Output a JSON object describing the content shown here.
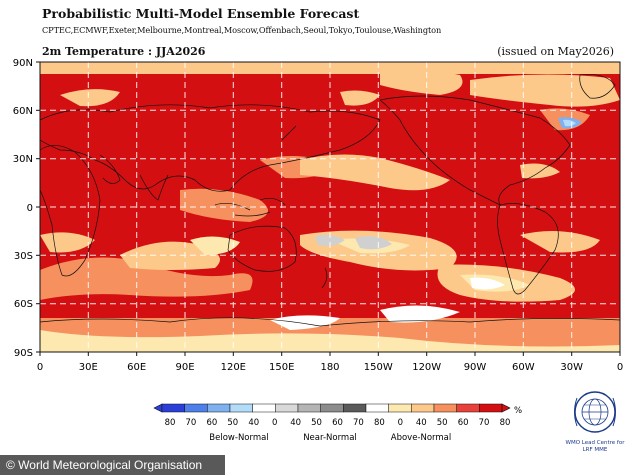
{
  "title": "Probabilistic Multi-Model Ensemble Forecast",
  "centres": "CPTEC,ECMWF,Exeter,Melbourne,Montreal,Moscow,Offenbach,Seoul,Tokyo,Toulouse,Washington",
  "subtitle": "2m Temperature : JJA2026",
  "issued": "(issued on May2026)",
  "lat_labels": [
    "90N",
    "60N",
    "30N",
    "0",
    "30S",
    "60S",
    "90S"
  ],
  "lon_labels": [
    "0",
    "30E",
    "60E",
    "90E",
    "120E",
    "150E",
    "180",
    "150W",
    "120W",
    "90W",
    "60W",
    "30W",
    "0"
  ],
  "colorbar": {
    "unit": "%",
    "below_ticks": [
      "80",
      "70",
      "60",
      "50",
      "40"
    ],
    "near_ticks": [
      "0",
      "40",
      "50",
      "60",
      "70",
      "80"
    ],
    "above_ticks": [
      "0",
      "40",
      "50",
      "60",
      "70",
      "80"
    ],
    "below_label": "Below-Normal",
    "near_label": "Near-Normal",
    "above_label": "Above-Normal",
    "below_colors": [
      "#2b3fd8",
      "#4f7fe8",
      "#7fb0f0",
      "#b3dcf8",
      "#ffffff"
    ],
    "near_colors": [
      "#ffffff",
      "#d9d9d9",
      "#b5b5b5",
      "#8c8c8c",
      "#5a5a5a",
      "#ffffff"
    ],
    "above_colors": [
      "#ffffff",
      "#fde8b0",
      "#fcc98a",
      "#f6905e",
      "#e8413a",
      "#d40f12"
    ]
  },
  "logo_text": "WMO Lead Centre for\nLRF MME",
  "footer": "© World Meteorological Organisation",
  "colors": {
    "above_80": "#d40f12",
    "above_70": "#e8413a",
    "above_60": "#f6905e",
    "above_50": "#fcc98a",
    "above_40": "#fde8b0",
    "near_normal": "#d0d0d0",
    "below_40": "#b3dcf8",
    "below_50": "#7fb0f0"
  }
}
